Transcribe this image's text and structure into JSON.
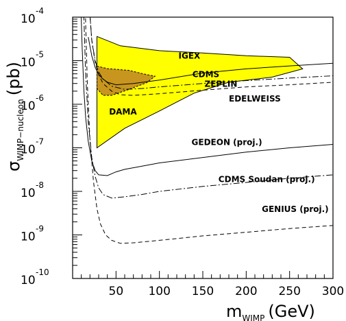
{
  "chart_data": {
    "type": "line",
    "xlabel": {
      "main": "m",
      "sub": "WIMP",
      "unit": "(GeV)"
    },
    "ylabel": {
      "main": "σ",
      "sub": "WIMP−nucleon",
      "unit": "(pb)"
    },
    "xlim": [
      0,
      300
    ],
    "ylim_log10": [
      -10,
      -4
    ],
    "y_scale": "log",
    "x_ticks": [
      50,
      100,
      150,
      200,
      250,
      300
    ],
    "y_ticks": [
      {
        "base": "10",
        "exp": "-4"
      },
      {
        "base": "10",
        "exp": "-5"
      },
      {
        "base": "10",
        "exp": "-6"
      },
      {
        "base": "10",
        "exp": "-7"
      },
      {
        "base": "10",
        "exp": "-8"
      },
      {
        "base": "10",
        "exp": "-9"
      },
      {
        "base": "10",
        "exp": "-10"
      }
    ],
    "regions": [
      {
        "label": "IGEX",
        "fill": "#ffff00",
        "stroke": "#000000",
        "points": [
          [
            28,
            3.6e-05
          ],
          [
            55,
            2.2e-05
          ],
          [
            100,
            1.7e-05
          ],
          [
            150,
            1.5e-05
          ],
          [
            200,
            1.3e-05
          ],
          [
            250,
            1.2e-05
          ],
          [
            265,
            6.5e-06
          ],
          [
            230,
            4.2e-06
          ],
          [
            180,
            3.2e-06
          ],
          [
            140,
            1.8e-06
          ],
          [
            100,
            7e-07
          ],
          [
            60,
            2.8e-07
          ],
          [
            28,
            1e-07
          ]
        ]
      },
      {
        "label": "DAMA",
        "fill": "#c8961e",
        "stroke": "#000000",
        "dashed": true,
        "points": [
          [
            28,
            7.5e-06
          ],
          [
            40,
            6.6e-06
          ],
          [
            65,
            6e-06
          ],
          [
            85,
            4.8e-06
          ],
          [
            95,
            4.4e-06
          ],
          [
            85,
            3.1e-06
          ],
          [
            65,
            2.2e-06
          ],
          [
            45,
            1.6e-06
          ],
          [
            35,
            1.6e-06
          ],
          [
            28,
            2.3e-06
          ]
        ]
      }
    ],
    "series": [
      {
        "name": "CDMS",
        "style": "solid",
        "x": [
          18,
          22,
          26,
          30,
          35,
          40,
          50,
          70,
          100,
          150,
          200,
          250,
          300
        ],
        "y": [
          3.5e-05,
          1.3e-05,
          7e-06,
          4.8e-06,
          3.8e-06,
          3.2e-06,
          2.8e-06,
          3e-06,
          3.6e-06,
          5.2e-06,
          6.5e-06,
          7.6e-06,
          8.7e-06
        ]
      },
      {
        "name": "ZEPLIN",
        "style": "dashdot",
        "x": [
          18,
          22,
          26,
          30,
          35,
          45,
          60,
          80,
          100,
          150,
          200,
          250,
          300
        ],
        "y": [
          0.0004,
          3e-05,
          1e-05,
          5.5e-06,
          3.8e-06,
          2.6e-06,
          2.2e-06,
          2.3e-06,
          2.5e-06,
          3e-06,
          3.5e-06,
          4e-06,
          4.5e-06
        ]
      },
      {
        "name": "EDELWEISS",
        "style": "dashed",
        "x": [
          18,
          22,
          26,
          30,
          35,
          45,
          55,
          70,
          100,
          150,
          200,
          250,
          300
        ],
        "y": [
          0.0004,
          3e-05,
          9e-06,
          4.8e-06,
          3e-06,
          2e-06,
          1.65e-06,
          1.6e-06,
          1.75e-06,
          2.1e-06,
          2.5e-06,
          2.8e-06,
          3.2e-06
        ]
      },
      {
        "name": "GEDEON (proj.)",
        "style": "solid",
        "x": [
          9,
          11,
          13,
          15,
          18,
          22,
          26,
          30,
          40,
          50,
          60,
          80,
          100,
          150,
          200,
          250,
          300
        ],
        "y": [
          0.0004,
          2e-05,
          2e-06,
          5e-07,
          1.4e-07,
          5e-08,
          3e-08,
          2.4e-08,
          2.3e-08,
          2.8e-08,
          3.2e-08,
          3.8e-08,
          4.5e-08,
          6e-08,
          8e-08,
          1e-07,
          1.2e-07
        ]
      },
      {
        "name": "CDMS Soudan (proj.)",
        "style": "dashdot",
        "x": [
          12,
          15,
          18,
          22,
          26,
          30,
          35,
          45,
          60,
          80,
          100,
          150,
          200,
          250,
          300
        ],
        "y": [
          0.0004,
          5e-06,
          4e-07,
          6e-08,
          2.2e-08,
          1.2e-08,
          8.5e-09,
          7e-09,
          7.5e-09,
          8.5e-09,
          1e-08,
          1.3e-08,
          1.6e-08,
          2e-08,
          2.4e-08
        ]
      },
      {
        "name": "GENIUS (proj.)",
        "style": "dashed",
        "x": [
          14,
          17,
          20,
          24,
          28,
          32,
          38,
          45,
          55,
          70,
          100,
          150,
          200,
          250,
          300
        ],
        "y": [
          0.0004,
          3e-06,
          1.5e-07,
          1.7e-08,
          4e-09,
          1.8e-09,
          1e-09,
          7.5e-10,
          6.4e-10,
          6.6e-10,
          7.5e-10,
          9.5e-10,
          1.15e-09,
          1.4e-09,
          1.65e-09
        ]
      }
    ],
    "annotations": [
      {
        "text": "IGEX",
        "x": 122,
        "y": 1.12e-05
      },
      {
        "text": "CDMS",
        "x": 138,
        "y": 4.2e-06
      },
      {
        "text": "ZEPLIN",
        "x": 152,
        "y": 2.5e-06
      },
      {
        "text": "EDELWEISS",
        "x": 180,
        "y": 1.15e-06
      },
      {
        "text": "DAMA",
        "x": 42,
        "y": 5.8e-07
      },
      {
        "text": "GEDEON (proj.)",
        "x": 137,
        "y": 1.15e-07
      },
      {
        "text": "CDMS Soudan (proj.)",
        "x": 168,
        "y": 1.62e-08
      },
      {
        "text": "GENIUS (proj.)",
        "x": 218,
        "y": 3.4e-09
      }
    ]
  }
}
